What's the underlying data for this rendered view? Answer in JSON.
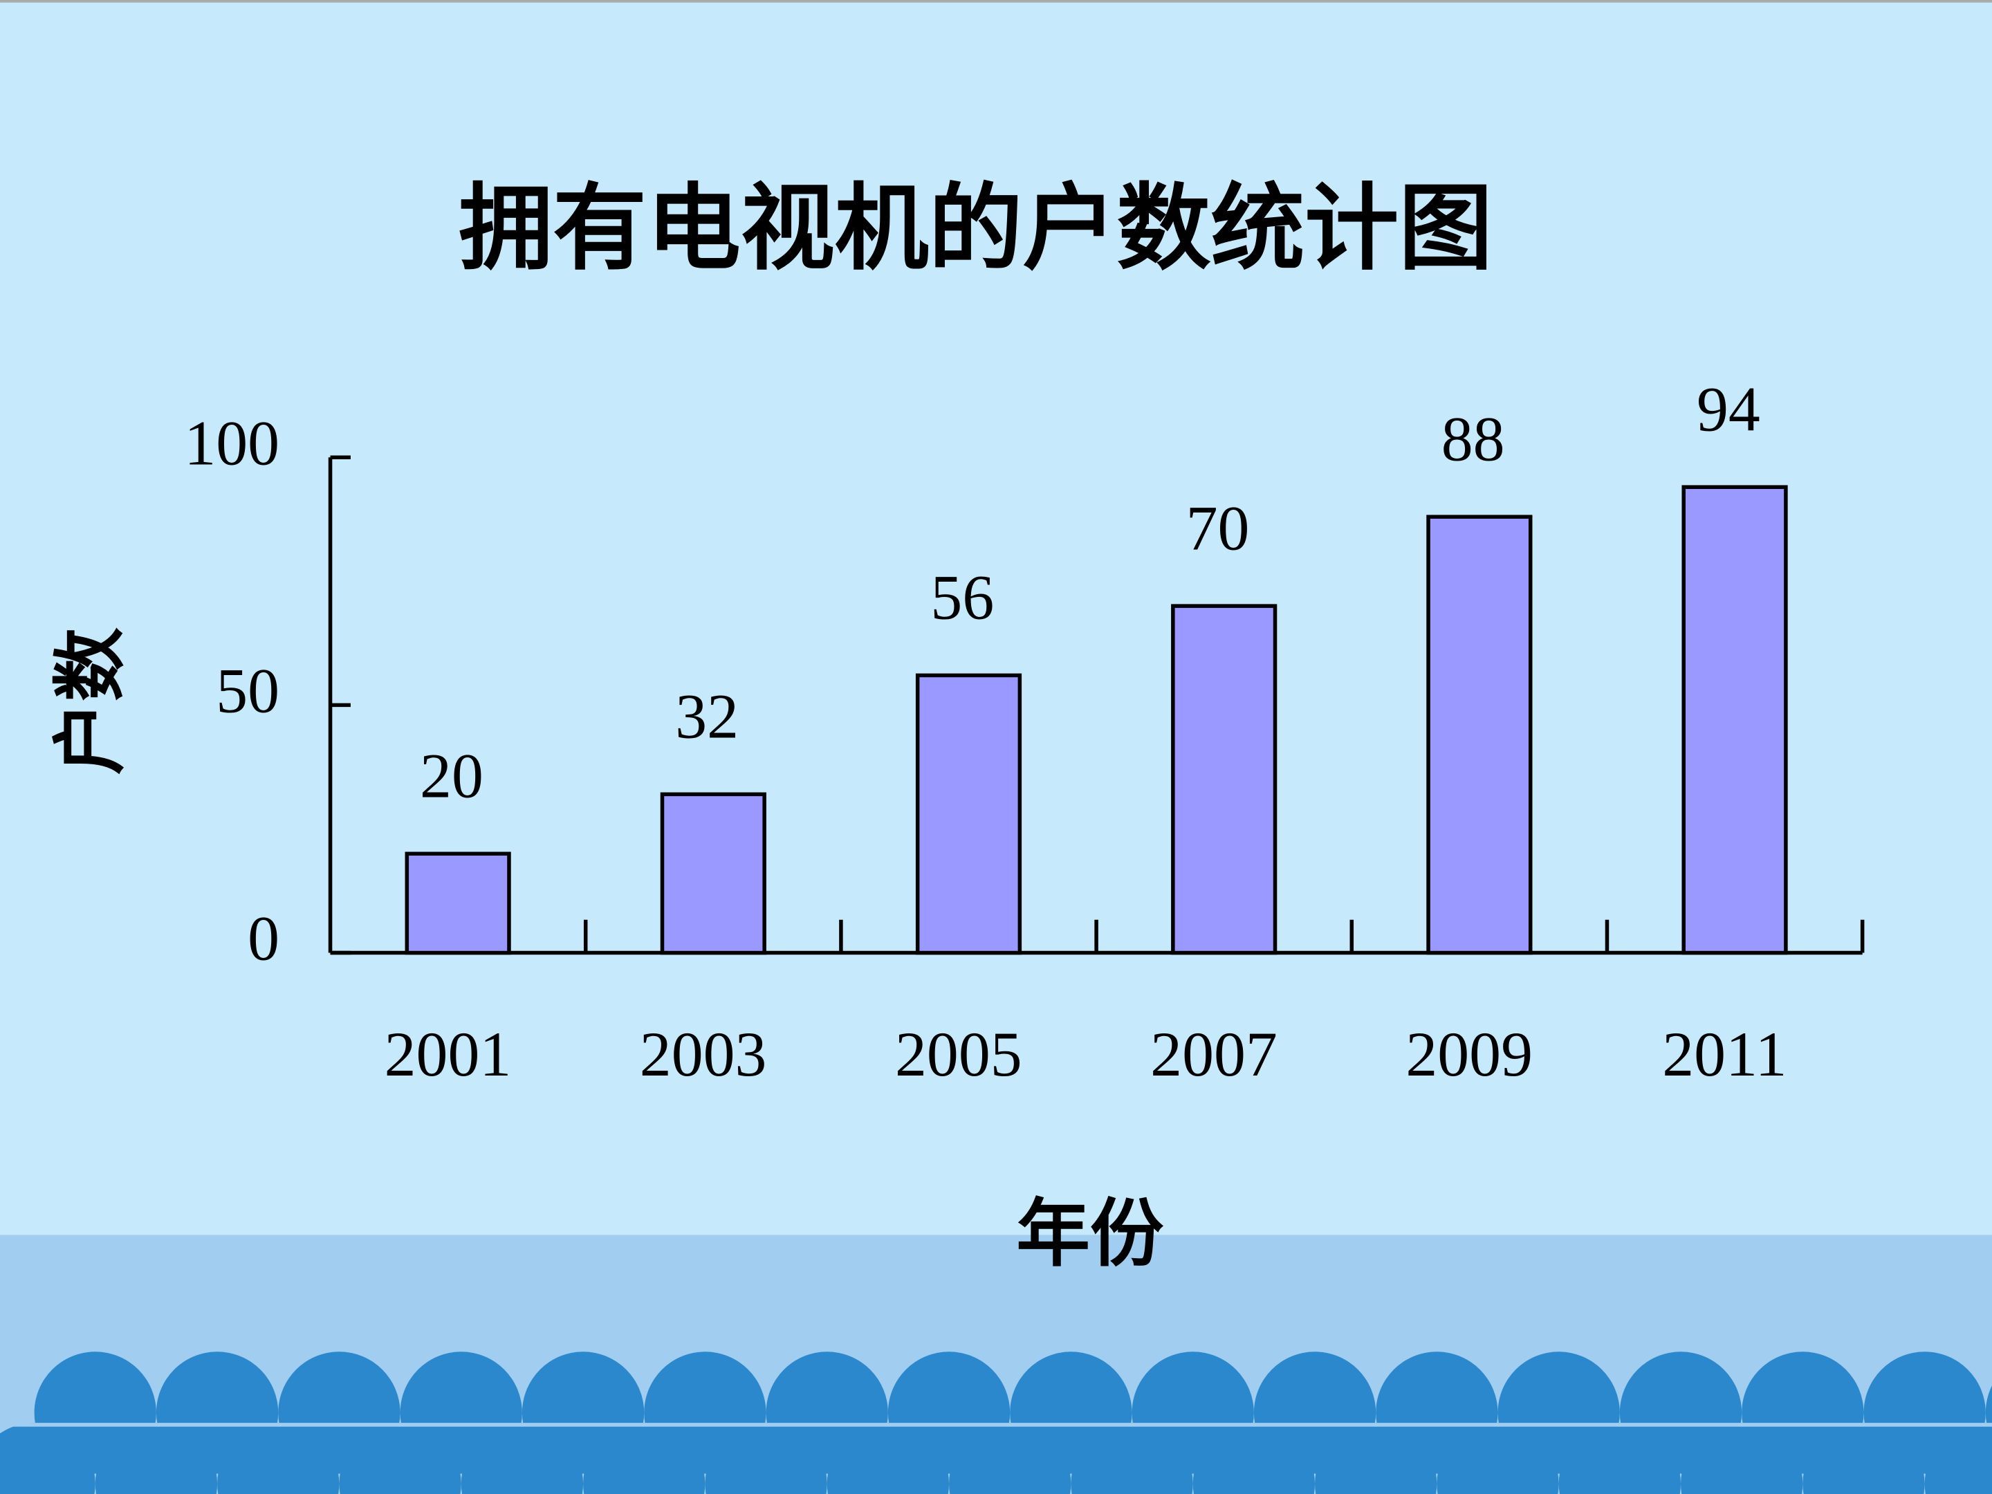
{
  "chart_data": {
    "type": "bar",
    "title": "拥有电视机的户数统计图",
    "y_label": "户数",
    "x_label": "年份",
    "categories": [
      "2001",
      "2003",
      "2005",
      "2007",
      "2009",
      "2011"
    ],
    "values": [
      20,
      32,
      56,
      70,
      88,
      94
    ],
    "color": "#9999ff",
    "ylim": [
      0,
      100
    ],
    "yticks": [
      0,
      50,
      100
    ]
  }
}
